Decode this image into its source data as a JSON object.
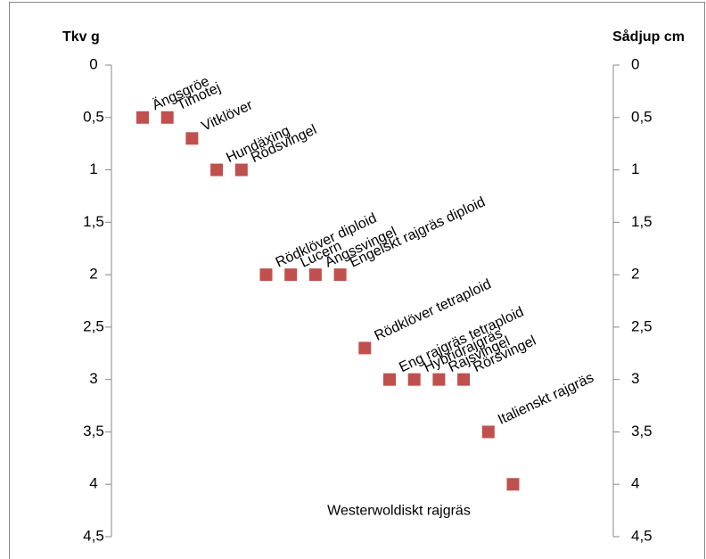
{
  "chart_data": {
    "type": "scatter",
    "y_label": "Tkv g",
    "y2_label": "Sådjup cm",
    "categories": [
      "Ängsgröe",
      "Timotej",
      "Vitklöver",
      "Hundäxing",
      "Rödsvingel",
      "Rödklöver diploid",
      "Lucern",
      "Ängssvingel",
      "Engelskt rajgräs diploid",
      "Rödklöver tetraploid",
      "Eng rajgräs tetraploid",
      "Hybridrajgräs",
      "Rajsvingel",
      "Rörsvingel",
      "Italienskt rajgräs",
      "Westerwoldiskt rajgräs"
    ],
    "values": [
      0.5,
      0.5,
      0.7,
      1,
      1,
      2,
      2,
      2,
      2,
      2.7,
      3,
      3,
      3,
      3,
      3.5,
      4
    ],
    "color": "#c0504d",
    "y_inverted": true,
    "ylim": [
      0,
      4.5
    ],
    "yticks": [
      0,
      {
        "value": 0.5,
        "label": "0,5"
      },
      1,
      {
        "value": 1.5,
        "label": "1,5"
      },
      2,
      {
        "value": 2.5,
        "label": "2,5"
      },
      3,
      {
        "value": 3.5,
        "label": "3,5"
      },
      4,
      {
        "value": 4.5,
        "label": "4,5"
      }
    ],
    "y2lim": [
      0,
      4.5
    ],
    "y2ticks": [
      0,
      {
        "value": 0.5,
        "label": "0,5"
      },
      1,
      {
        "value": 1.5,
        "label": "1,5"
      },
      2,
      {
        "value": 2.5,
        "label": "2,5"
      },
      3,
      {
        "value": 3.5,
        "label": "3,5"
      },
      4,
      {
        "value": 4.5,
        "label": "4,5"
      }
    ],
    "grid": false
  }
}
